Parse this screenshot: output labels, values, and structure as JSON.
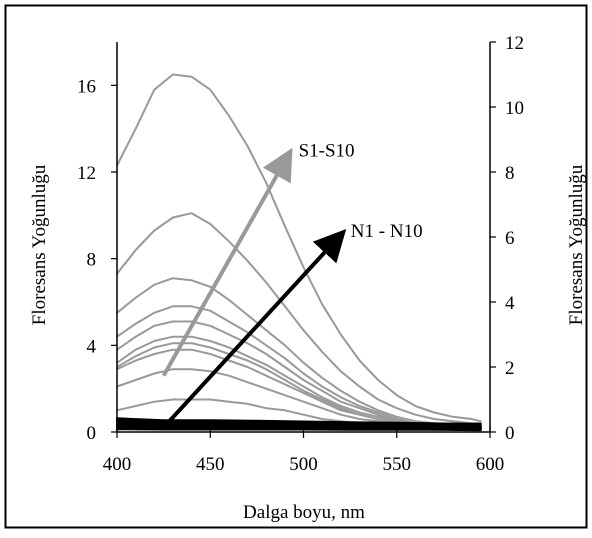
{
  "chart_data": {
    "type": "line",
    "xlabel": "Dalga boyu, nm",
    "ylabel_left": "Floresans Yoğunluğu",
    "ylabel_right": "Floresans Yoğunluğu",
    "xlim": [
      400,
      600
    ],
    "ylim_left": [
      0,
      18
    ],
    "ylim_right": [
      0,
      12
    ],
    "x_ticks": [
      400,
      450,
      500,
      550,
      600
    ],
    "y_ticks_left": [
      0,
      4,
      8,
      12,
      16
    ],
    "y_ticks_right": [
      0,
      2,
      4,
      6,
      8,
      10,
      12
    ],
    "grid": false,
    "legend": "none",
    "colors": {
      "S": "#999999",
      "N": "#000000",
      "arrow_S": "#999999",
      "arrow_N": "#000000"
    },
    "annotations": [
      {
        "id": "arrow_S",
        "label": "S1-S10",
        "from": [
          425,
          2.6
        ],
        "to": [
          492,
          12.8
        ]
      },
      {
        "id": "arrow_N",
        "label": "N1 - N10",
        "from": [
          427,
          0.4
        ],
        "to": [
          520,
          9.1
        ]
      }
    ],
    "series": [
      {
        "group": "S",
        "axis": "left",
        "x": [
          400,
          410,
          420,
          430,
          440,
          450,
          460,
          470,
          480,
          490,
          500,
          510,
          520,
          530,
          540,
          550,
          560,
          570,
          580,
          590,
          595
        ],
        "y": [
          12.3,
          14.0,
          15.8,
          16.5,
          16.4,
          15.8,
          14.6,
          13.2,
          11.5,
          9.5,
          7.6,
          5.9,
          4.5,
          3.3,
          2.4,
          1.7,
          1.2,
          0.9,
          0.7,
          0.6,
          0.5
        ]
      },
      {
        "group": "S",
        "axis": "left",
        "x": [
          400,
          410,
          420,
          430,
          440,
          450,
          460,
          470,
          480,
          490,
          500,
          510,
          520,
          530,
          540,
          550,
          560,
          570,
          580,
          590,
          595
        ],
        "y": [
          7.3,
          8.4,
          9.3,
          9.9,
          10.1,
          9.6,
          8.8,
          7.9,
          6.9,
          5.8,
          4.7,
          3.7,
          2.8,
          2.1,
          1.5,
          1.1,
          0.8,
          0.6,
          0.5,
          0.4,
          0.4
        ]
      },
      {
        "group": "S",
        "axis": "left",
        "x": [
          400,
          410,
          420,
          430,
          440,
          450,
          460,
          470,
          480,
          490,
          500,
          510,
          520,
          530,
          540,
          550,
          560,
          570,
          580,
          590,
          595
        ],
        "y": [
          5.5,
          6.2,
          6.8,
          7.1,
          7.0,
          6.7,
          6.1,
          5.4,
          4.7,
          4.0,
          3.2,
          2.5,
          1.9,
          1.4,
          1.0,
          0.7,
          0.5,
          0.4,
          0.3,
          0.3,
          0.3
        ]
      },
      {
        "group": "S",
        "axis": "left",
        "x": [
          400,
          410,
          420,
          430,
          440,
          450,
          460,
          470,
          480,
          490,
          500,
          510,
          520,
          530,
          540,
          550,
          560,
          570,
          580,
          590,
          595
        ],
        "y": [
          4.4,
          5.0,
          5.5,
          5.8,
          5.8,
          5.6,
          5.1,
          4.6,
          4.0,
          3.4,
          2.7,
          2.1,
          1.6,
          1.2,
          0.9,
          0.6,
          0.4,
          0.3,
          0.3,
          0.2,
          0.2
        ]
      },
      {
        "group": "S",
        "axis": "left",
        "x": [
          400,
          410,
          420,
          430,
          440,
          450,
          460,
          470,
          480,
          490,
          500,
          510,
          520,
          530,
          540,
          550,
          560,
          570,
          580,
          590,
          595
        ],
        "y": [
          3.8,
          4.4,
          4.9,
          5.1,
          5.1,
          4.9,
          4.5,
          4.1,
          3.6,
          3.0,
          2.4,
          1.9,
          1.4,
          1.1,
          0.8,
          0.5,
          0.4,
          0.3,
          0.2,
          0.2,
          0.2
        ]
      },
      {
        "group": "S",
        "axis": "left",
        "x": [
          400,
          410,
          420,
          430,
          440,
          450,
          460,
          470,
          480,
          490,
          500,
          510,
          520,
          530,
          540,
          550,
          560,
          570,
          580,
          590,
          595
        ],
        "y": [
          3.2,
          3.8,
          4.2,
          4.4,
          4.4,
          4.2,
          3.9,
          3.5,
          3.1,
          2.6,
          2.1,
          1.6,
          1.2,
          0.9,
          0.7,
          0.5,
          0.3,
          0.3,
          0.2,
          0.2,
          0.2
        ]
      },
      {
        "group": "S",
        "axis": "left",
        "x": [
          400,
          410,
          420,
          430,
          440,
          450,
          460,
          470,
          480,
          490,
          500,
          510,
          520,
          530,
          540,
          550,
          560,
          570,
          580,
          590,
          595
        ],
        "y": [
          3.0,
          3.5,
          3.9,
          4.1,
          4.1,
          3.9,
          3.6,
          3.3,
          2.9,
          2.4,
          1.9,
          1.5,
          1.1,
          0.8,
          0.6,
          0.4,
          0.3,
          0.2,
          0.2,
          0.2,
          0.2
        ]
      },
      {
        "group": "S",
        "axis": "left",
        "x": [
          400,
          410,
          420,
          430,
          440,
          450,
          460,
          470,
          480,
          490,
          500,
          510,
          520,
          530,
          540,
          550,
          560,
          570,
          580,
          590,
          595
        ],
        "y": [
          2.9,
          3.3,
          3.6,
          3.8,
          3.8,
          3.6,
          3.3,
          3.0,
          2.6,
          2.2,
          1.8,
          1.4,
          1.0,
          0.8,
          0.6,
          0.4,
          0.3,
          0.2,
          0.2,
          0.1,
          0.1
        ]
      },
      {
        "group": "S",
        "axis": "left",
        "x": [
          400,
          410,
          420,
          430,
          440,
          450,
          460,
          470,
          480,
          490,
          500,
          510,
          520,
          530,
          540,
          550,
          560,
          570,
          580,
          590,
          595
        ],
        "y": [
          2.1,
          2.4,
          2.7,
          2.9,
          2.9,
          2.8,
          2.6,
          2.3,
          2.0,
          1.7,
          1.4,
          1.1,
          0.8,
          0.6,
          0.5,
          0.3,
          0.2,
          0.2,
          0.1,
          0.1,
          0.1
        ]
      },
      {
        "group": "S",
        "axis": "left",
        "x": [
          400,
          410,
          420,
          430,
          440,
          450,
          460,
          470,
          480,
          490,
          500,
          510,
          520,
          530,
          540,
          550,
          560,
          570,
          580,
          590,
          595
        ],
        "y": [
          1.0,
          1.2,
          1.4,
          1.5,
          1.5,
          1.5,
          1.4,
          1.3,
          1.1,
          1.0,
          0.8,
          0.6,
          0.5,
          0.4,
          0.3,
          0.2,
          0.2,
          0.1,
          0.1,
          0.1,
          0.1
        ]
      },
      {
        "group": "N",
        "axis": "right",
        "x": [
          400,
          425,
          450,
          475,
          500,
          525,
          550,
          575,
          595
        ],
        "y": [
          0.42,
          0.36,
          0.36,
          0.34,
          0.32,
          0.3,
          0.28,
          0.26,
          0.25
        ]
      },
      {
        "group": "N",
        "axis": "right",
        "x": [
          400,
          425,
          450,
          475,
          500,
          525,
          550,
          575,
          595
        ],
        "y": [
          0.37,
          0.32,
          0.32,
          0.3,
          0.28,
          0.26,
          0.24,
          0.23,
          0.22
        ]
      },
      {
        "group": "N",
        "axis": "right",
        "x": [
          400,
          425,
          450,
          475,
          500,
          525,
          550,
          575,
          595
        ],
        "y": [
          0.32,
          0.28,
          0.28,
          0.26,
          0.25,
          0.23,
          0.21,
          0.2,
          0.19
        ]
      },
      {
        "group": "N",
        "axis": "right",
        "x": [
          400,
          425,
          450,
          475,
          500,
          525,
          550,
          575,
          595
        ],
        "y": [
          0.28,
          0.25,
          0.25,
          0.23,
          0.22,
          0.2,
          0.19,
          0.18,
          0.17
        ]
      },
      {
        "group": "N",
        "axis": "right",
        "x": [
          400,
          425,
          450,
          475,
          500,
          525,
          550,
          575,
          595
        ],
        "y": [
          0.24,
          0.22,
          0.22,
          0.21,
          0.2,
          0.18,
          0.17,
          0.16,
          0.15
        ]
      },
      {
        "group": "N",
        "axis": "right",
        "x": [
          400,
          425,
          450,
          475,
          500,
          525,
          550,
          575,
          595
        ],
        "y": [
          0.21,
          0.19,
          0.19,
          0.18,
          0.17,
          0.16,
          0.15,
          0.14,
          0.13
        ]
      },
      {
        "group": "N",
        "axis": "right",
        "x": [
          400,
          425,
          450,
          475,
          500,
          525,
          550,
          575,
          595
        ],
        "y": [
          0.18,
          0.17,
          0.17,
          0.16,
          0.15,
          0.14,
          0.13,
          0.12,
          0.12
        ]
      },
      {
        "group": "N",
        "axis": "right",
        "x": [
          400,
          425,
          450,
          475,
          500,
          525,
          550,
          575,
          595
        ],
        "y": [
          0.15,
          0.14,
          0.14,
          0.13,
          0.13,
          0.12,
          0.11,
          0.11,
          0.1
        ]
      },
      {
        "group": "N",
        "axis": "right",
        "x": [
          400,
          425,
          450,
          475,
          500,
          525,
          550,
          575,
          595
        ],
        "y": [
          0.12,
          0.11,
          0.11,
          0.11,
          0.1,
          0.1,
          0.09,
          0.09,
          0.08
        ]
      },
      {
        "group": "N",
        "axis": "right",
        "x": [
          400,
          425,
          450,
          475,
          500,
          525,
          550,
          575,
          595
        ],
        "y": [
          0.09,
          0.08,
          0.08,
          0.08,
          0.08,
          0.07,
          0.07,
          0.07,
          0.06
        ]
      }
    ]
  }
}
